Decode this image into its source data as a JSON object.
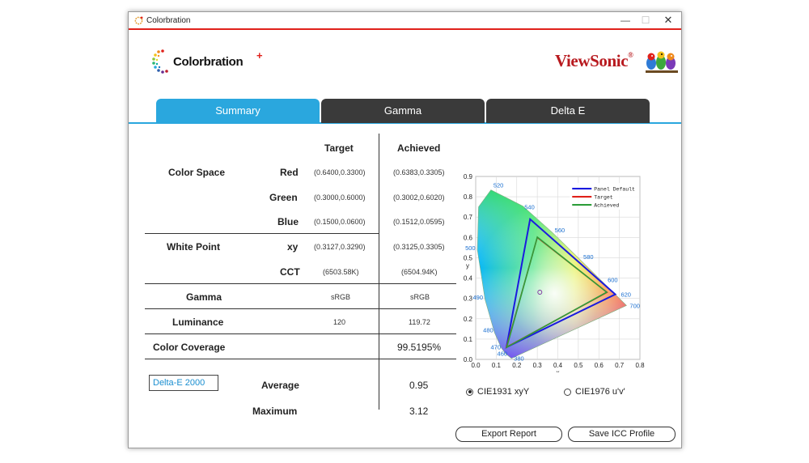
{
  "window": {
    "title": "Colorbration"
  },
  "branding": {
    "product": "Colorbration",
    "product_plus": "+",
    "vendor": "ViewSonic",
    "vendor_mark": "®"
  },
  "tabs": [
    "Summary",
    "Gamma",
    "Delta E"
  ],
  "table": {
    "col_target": "Target",
    "col_achieved": "Achieved",
    "color_space": {
      "label": "Color Space",
      "rows": [
        {
          "name": "Red",
          "target": "(0.6400,0.3300)",
          "achieved": "(0.6383,0.3305)"
        },
        {
          "name": "Green",
          "target": "(0.3000,0.6000)",
          "achieved": "(0.3002,0.6020)"
        },
        {
          "name": "Blue",
          "target": "(0.1500,0.0600)",
          "achieved": "(0.1512,0.0595)"
        }
      ]
    },
    "white_point": {
      "label": "White Point",
      "rows": [
        {
          "name": "xy",
          "target": "(0.3127,0.3290)",
          "achieved": "(0.3125,0.3305)"
        },
        {
          "name": "CCT",
          "target": "(6503.58K)",
          "achieved": "(6504.94K)"
        }
      ]
    },
    "gamma": {
      "label": "Gamma",
      "target": "sRGB",
      "achieved": "sRGB"
    },
    "luminance": {
      "label": "Luminance",
      "target": "120",
      "achieved": "119.72"
    },
    "coverage": {
      "label": "Color Coverage",
      "achieved": "99.5195%"
    },
    "delta": {
      "select": "Delta-E 2000",
      "average_label": "Average",
      "average": "0.95",
      "maximum_label": "Maximum",
      "maximum": "3.12"
    }
  },
  "chart_data": {
    "type": "scatter",
    "xlabel": "x",
    "ylabel": "y",
    "xlim": [
      0,
      0.8
    ],
    "ylim": [
      0,
      0.9
    ],
    "x_ticks": [
      "0.0",
      "0.1",
      "0.2",
      "0.3",
      "0.4",
      "0.5",
      "0.6",
      "0.7",
      "0.8"
    ],
    "y_ticks": [
      "0.0",
      "0.1",
      "0.2",
      "0.3",
      "0.4",
      "0.5",
      "0.6",
      "0.7",
      "0.8",
      "0.9"
    ],
    "grid": true,
    "legend_position": "top-right",
    "wavelength_labels": [
      "380",
      "460",
      "470",
      "480",
      "490",
      "500",
      "520",
      "540",
      "560",
      "580",
      "600",
      "620",
      "700"
    ],
    "locus": [
      [
        0.1741,
        0.005
      ],
      [
        0.144,
        0.0297
      ],
      [
        0.1241,
        0.0578
      ],
      [
        0.0913,
        0.1327
      ],
      [
        0.0454,
        0.295
      ],
      [
        0.0082,
        0.5384
      ],
      [
        0.0139,
        0.7502
      ],
      [
        0.0743,
        0.8338
      ],
      [
        0.2296,
        0.7543
      ],
      [
        0.3731,
        0.6245
      ],
      [
        0.5125,
        0.4866
      ],
      [
        0.627,
        0.3725
      ],
      [
        0.6915,
        0.3083
      ],
      [
        0.7347,
        0.2653
      ]
    ],
    "wavelength_points": [
      [
        0.1741,
        0.005
      ],
      [
        0.144,
        0.0297
      ],
      [
        0.1241,
        0.0578
      ],
      [
        0.0913,
        0.1327
      ],
      [
        0.0454,
        0.295
      ],
      [
        0.0082,
        0.5384
      ],
      [
        0.0743,
        0.8338
      ],
      [
        0.2296,
        0.7543
      ],
      [
        0.3731,
        0.6245
      ],
      [
        0.5125,
        0.4866
      ],
      [
        0.627,
        0.3725
      ],
      [
        0.6915,
        0.3083
      ],
      [
        0.7347,
        0.2653
      ]
    ],
    "series": [
      {
        "name": "Panel Default",
        "color": "#1a1adf",
        "points": [
          [
            0.68,
            0.32
          ],
          [
            0.265,
            0.69
          ],
          [
            0.15,
            0.06
          ]
        ]
      },
      {
        "name": "Target",
        "color": "#e0211b",
        "points": [
          [
            0.64,
            0.33
          ],
          [
            0.3,
            0.6
          ],
          [
            0.15,
            0.06
          ]
        ]
      },
      {
        "name": "Achieved",
        "color": "#2e9e3a",
        "points": [
          [
            0.6383,
            0.3305
          ],
          [
            0.3002,
            0.602
          ],
          [
            0.1512,
            0.0595
          ]
        ]
      }
    ],
    "white_point": [
      0.3125,
      0.3305
    ]
  },
  "view_modes": {
    "selected": "CIE1931 xyY",
    "other": "CIE1976 u'v'"
  },
  "buttons": {
    "export": "Export Report",
    "save_icc": "Save ICC Profile"
  }
}
